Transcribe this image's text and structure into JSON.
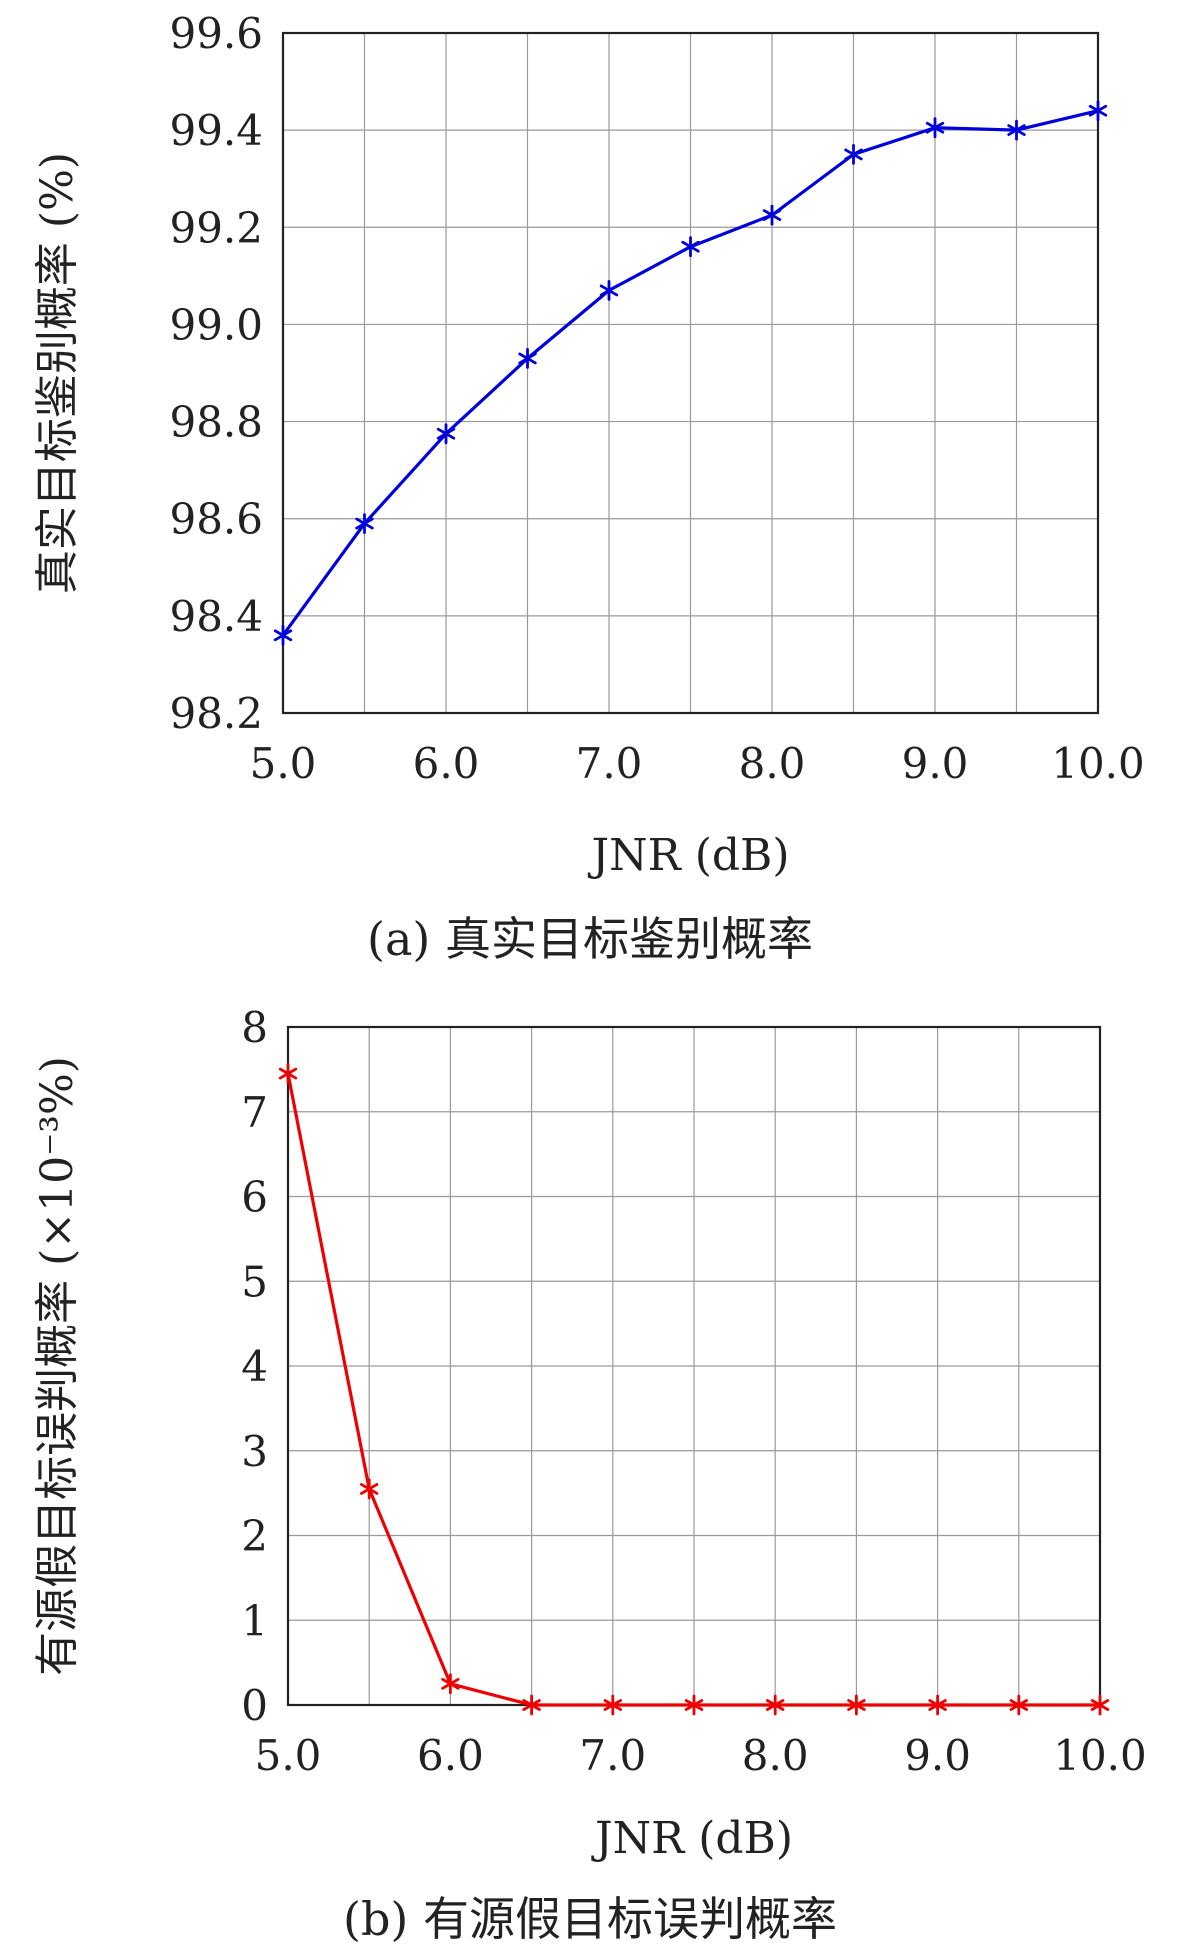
{
  "chart_data": [
    {
      "type": "line",
      "caption": "(a) 真实目标鉴别概率",
      "xlabel": "JNR (dB)",
      "ylabel": "真实目标鉴别概率 (%)",
      "x": [
        5.0,
        5.5,
        6.0,
        6.5,
        7.0,
        7.5,
        8.0,
        8.5,
        9.0,
        9.5,
        10.0
      ],
      "series": [
        {
          "values": [
            98.36,
            98.59,
            98.775,
            98.93,
            99.07,
            99.16,
            99.225,
            99.35,
            99.405,
            99.4,
            99.44
          ],
          "color": "#0000dd",
          "marker": "asterisk"
        }
      ],
      "xlim": [
        5.0,
        10.0
      ],
      "ylim": [
        98.2,
        99.6
      ],
      "xticks": [
        5.0,
        5.5,
        6.0,
        6.5,
        7.0,
        7.5,
        8.0,
        8.5,
        9.0,
        9.5,
        10.0
      ],
      "xtick_labels": [
        "5.0",
        "6.0",
        "7.0",
        "8.0",
        "9.0",
        "10.0"
      ],
      "yticks": [
        98.2,
        98.4,
        98.6,
        98.8,
        99.0,
        99.2,
        99.4,
        99.6
      ],
      "ytick_labels": [
        "98.2",
        "98.4",
        "98.6",
        "98.8",
        "99.0",
        "99.2",
        "99.4",
        "99.6"
      ],
      "grid": true
    },
    {
      "type": "line",
      "caption": "(b) 有源假目标误判概率",
      "xlabel": "JNR (dB)",
      "ylabel": "有源假目标误判概率 (×10⁻³%)",
      "x": [
        5.0,
        5.5,
        6.0,
        6.5,
        7.0,
        7.5,
        8.0,
        8.5,
        9.0,
        9.5,
        10.0
      ],
      "series": [
        {
          "values": [
            7.45,
            2.55,
            0.25,
            0,
            0,
            0,
            0,
            0,
            0,
            0,
            0
          ],
          "color": "#ee0000",
          "marker": "asterisk"
        }
      ],
      "xlim": [
        5.0,
        10.0
      ],
      "ylim": [
        0,
        8
      ],
      "xticks": [
        5.0,
        5.5,
        6.0,
        6.5,
        7.0,
        7.5,
        8.0,
        8.5,
        9.0,
        9.5,
        10.0
      ],
      "xtick_labels": [
        "5.0",
        "6.0",
        "7.0",
        "8.0",
        "9.0",
        "10.0"
      ],
      "yticks": [
        0,
        1,
        2,
        3,
        4,
        5,
        6,
        7,
        8
      ],
      "ytick_labels": [
        "0",
        "1",
        "2",
        "3",
        "4",
        "5",
        "6",
        "7",
        "8"
      ],
      "grid": true
    }
  ]
}
